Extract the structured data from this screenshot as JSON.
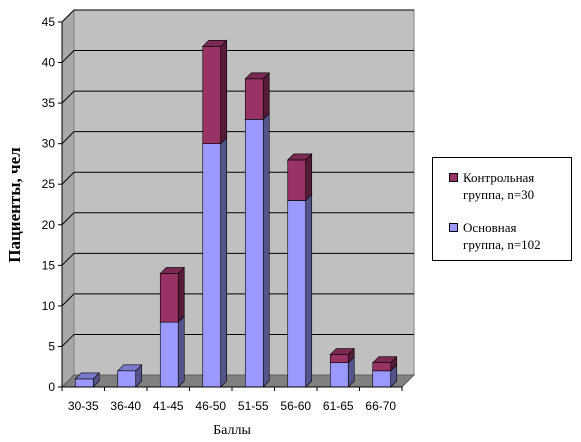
{
  "chart_data": {
    "type": "bar",
    "stacked": true,
    "three_d": true,
    "xlabel": "Баллы",
    "ylabel": "Пациенты, чел",
    "ylim": [
      0,
      45
    ],
    "yticks": [
      0,
      5,
      10,
      15,
      20,
      25,
      30,
      35,
      40,
      45
    ],
    "grid": true,
    "legend_position": "right",
    "categories": [
      "30-35",
      "36-40",
      "41-45",
      "46-50",
      "51-55",
      "56-60",
      "61-65",
      "66-70"
    ],
    "series": [
      {
        "name": "Основная группа, n=102",
        "color": "#9999ff",
        "values": [
          1,
          2,
          8,
          30,
          33,
          23,
          3,
          2
        ]
      },
      {
        "name": "Контрольная группа, n=30",
        "color": "#993366",
        "values": [
          0,
          0,
          6,
          12,
          5,
          5,
          1,
          1
        ]
      }
    ],
    "legend": [
      {
        "line1": "Контрольная",
        "line2": "группа, n=30",
        "color": "#993366"
      },
      {
        "line1": "Основная",
        "line2": "группа, n=102",
        "color": "#9999ff"
      }
    ]
  }
}
